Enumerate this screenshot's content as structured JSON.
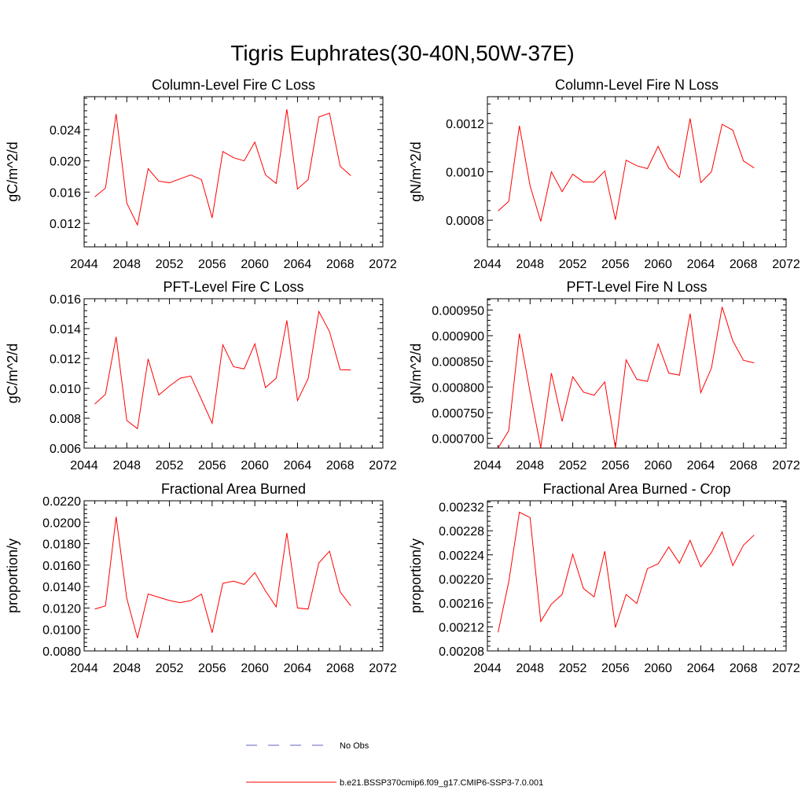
{
  "title": "Tigris Euphrates(30-40N,50W-37E)",
  "series_color": "#ff0000",
  "obs_color": "#6060c0",
  "legend": {
    "obs_label": "No Obs",
    "model_label": "b.e21.BSSP370cmip6.f09_g17.CMIP6-SSP3-7.0.001"
  },
  "chart_data": [
    {
      "type": "line",
      "title": "Column-Level Fire C Loss",
      "ylabel": "gC/m^2/d",
      "xlabel": "",
      "xlim": [
        2044,
        2072
      ],
      "ylim": [
        0.009,
        0.0282
      ],
      "xticks": [
        "2044",
        "2048",
        "2052",
        "2056",
        "2060",
        "2064",
        "2068",
        "2072"
      ],
      "yticks": [
        "0.012",
        "0.016",
        "0.020",
        "0.024"
      ],
      "ytick_values": [
        0.012,
        0.016,
        0.02,
        0.024
      ],
      "x": [
        2045,
        2046,
        2047,
        2048,
        2049,
        2050,
        2051,
        2052,
        2053,
        2054,
        2055,
        2056,
        2057,
        2058,
        2059,
        2060,
        2061,
        2062,
        2063,
        2064,
        2065,
        2066,
        2067,
        2068,
        2069
      ],
      "series": [
        {
          "name": "b.e21.BSSP370cmip6.f09_g17.CMIP6-SSP3-7.0.001",
          "values": [
            0.0154,
            0.0165,
            0.026,
            0.0146,
            0.0118,
            0.019,
            0.0174,
            0.0172,
            0.0177,
            0.0182,
            0.0176,
            0.0127,
            0.0212,
            0.0204,
            0.02,
            0.0224,
            0.0182,
            0.0171,
            0.0266,
            0.0164,
            0.0176,
            0.0256,
            0.0261,
            0.0193,
            0.0181
          ]
        }
      ]
    },
    {
      "type": "line",
      "title": "Column-Level Fire N Loss",
      "ylabel": "gN/m^2/d",
      "xlabel": "",
      "xlim": [
        2044,
        2072
      ],
      "ylim": [
        0.00069,
        0.00131
      ],
      "xticks": [
        "2044",
        "2048",
        "2052",
        "2056",
        "2060",
        "2064",
        "2068",
        "2072"
      ],
      "yticks": [
        "0.0008",
        "0.0010",
        "0.0012"
      ],
      "ytick_values": [
        0.0008,
        0.001,
        0.0012
      ],
      "x": [
        2045,
        2046,
        2047,
        2048,
        2049,
        2050,
        2051,
        2052,
        2053,
        2054,
        2055,
        2056,
        2057,
        2058,
        2059,
        2060,
        2061,
        2062,
        2063,
        2064,
        2065,
        2066,
        2067,
        2068,
        2069
      ],
      "series": [
        {
          "name": "b.e21.BSSP370cmip6.f09_g17.CMIP6-SSP3-7.0.001",
          "values": [
            0.000838,
            0.000878,
            0.00119,
            0.000942,
            0.000795,
            0.001,
            0.000918,
            0.00099,
            0.000958,
            0.000958,
            0.001003,
            0.000802,
            0.001048,
            0.001025,
            0.001013,
            0.001105,
            0.001015,
            0.000977,
            0.00122,
            0.000955,
            0.001,
            0.001196,
            0.001172,
            0.001045,
            0.001016
          ]
        }
      ]
    },
    {
      "type": "line",
      "title": "PFT-Level Fire C Loss",
      "ylabel": "gC/m^2/d",
      "xlabel": "",
      "xlim": [
        2044,
        2072
      ],
      "ylim": [
        0.006,
        0.016
      ],
      "xticks": [
        "2044",
        "2048",
        "2052",
        "2056",
        "2060",
        "2064",
        "2068",
        "2072"
      ],
      "yticks": [
        "0.006",
        "0.008",
        "0.010",
        "0.012",
        "0.014",
        "0.016"
      ],
      "ytick_values": [
        0.006,
        0.008,
        0.01,
        0.012,
        0.014,
        0.016
      ],
      "x": [
        2045,
        2046,
        2047,
        2048,
        2049,
        2050,
        2051,
        2052,
        2053,
        2054,
        2055,
        2056,
        2057,
        2058,
        2059,
        2060,
        2061,
        2062,
        2063,
        2064,
        2065,
        2066,
        2067,
        2068,
        2069
      ],
      "series": [
        {
          "name": "b.e21.BSSP370cmip6.f09_g17.CMIP6-SSP3-7.0.001",
          "values": [
            0.00895,
            0.0096,
            0.01345,
            0.00785,
            0.0073,
            0.01197,
            0.00955,
            0.01015,
            0.01068,
            0.01082,
            0.00925,
            0.00766,
            0.01292,
            0.01145,
            0.0113,
            0.01298,
            0.01005,
            0.01068,
            0.01455,
            0.00918,
            0.01066,
            0.01515,
            0.0138,
            0.01125,
            0.01123
          ]
        }
      ]
    },
    {
      "type": "line",
      "title": "PFT-Level Fire N Loss",
      "ylabel": "gN/m^2/d",
      "xlabel": "",
      "xlim": [
        2044,
        2072
      ],
      "ylim": [
        0.000681,
        0.000972
      ],
      "xticks": [
        "2044",
        "2048",
        "2052",
        "2056",
        "2060",
        "2064",
        "2068",
        "2072"
      ],
      "yticks": [
        "0.000700",
        "0.000750",
        "0.000800",
        "0.000850",
        "0.000900",
        "0.000950"
      ],
      "ytick_values": [
        0.0007,
        0.00075,
        0.0008,
        0.00085,
        0.0009,
        0.00095
      ],
      "x": [
        2045,
        2046,
        2047,
        2048,
        2049,
        2050,
        2051,
        2052,
        2053,
        2054,
        2055,
        2056,
        2057,
        2058,
        2059,
        2060,
        2061,
        2062,
        2063,
        2064,
        2065,
        2066,
        2067,
        2068,
        2069
      ],
      "series": [
        {
          "name": "b.e21.BSSP370cmip6.f09_g17.CMIP6-SSP3-7.0.001",
          "values": [
            0.000681,
            0.000715,
            0.000904,
            0.00079,
            0.000682,
            0.000827,
            0.000733,
            0.00082,
            0.00079,
            0.000784,
            0.00081,
            0.000681,
            0.000853,
            0.000815,
            0.000811,
            0.000884,
            0.000827,
            0.000823,
            0.000943,
            0.000789,
            0.000837,
            0.000956,
            0.00089,
            0.000852,
            0.000847
          ]
        }
      ]
    },
    {
      "type": "line",
      "title": "Fractional Area Burned",
      "ylabel": "proportion/y",
      "xlabel": "",
      "xlim": [
        2044,
        2072
      ],
      "ylim": [
        0.008,
        0.022
      ],
      "xticks": [
        "2044",
        "2048",
        "2052",
        "2056",
        "2060",
        "2064",
        "2068",
        "2072"
      ],
      "yticks": [
        "0.0080",
        "0.0100",
        "0.0120",
        "0.0140",
        "0.0160",
        "0.0180",
        "0.0200",
        "0.0220"
      ],
      "ytick_values": [
        0.008,
        0.01,
        0.012,
        0.014,
        0.016,
        0.018,
        0.02,
        0.022
      ],
      "x": [
        2045,
        2046,
        2047,
        2048,
        2049,
        2050,
        2051,
        2052,
        2053,
        2054,
        2055,
        2056,
        2057,
        2058,
        2059,
        2060,
        2061,
        2062,
        2063,
        2064,
        2065,
        2066,
        2067,
        2068,
        2069
      ],
      "series": [
        {
          "name": "b.e21.BSSP370cmip6.f09_g17.CMIP6-SSP3-7.0.001",
          "values": [
            0.0119,
            0.0122,
            0.0205,
            0.0129,
            0.0092,
            0.0133,
            0.013,
            0.0127,
            0.0125,
            0.0127,
            0.0133,
            0.0097,
            0.0143,
            0.0145,
            0.0142,
            0.0153,
            0.0136,
            0.0121,
            0.019,
            0.012,
            0.0119,
            0.0162,
            0.0173,
            0.0135,
            0.0122
          ]
        }
      ]
    },
    {
      "type": "line",
      "title": "Fractional Area Burned - Crop",
      "ylabel": "proportion/y",
      "xlabel": "",
      "xlim": [
        2044,
        2072
      ],
      "ylim": [
        0.00208,
        0.00233
      ],
      "xticks": [
        "2044",
        "2048",
        "2052",
        "2056",
        "2060",
        "2064",
        "2068",
        "2072"
      ],
      "yticks": [
        "0.00208",
        "0.00212",
        "0.00216",
        "0.00220",
        "0.00224",
        "0.00228",
        "0.00232"
      ],
      "ytick_values": [
        0.00208,
        0.00212,
        0.00216,
        0.0022,
        0.00224,
        0.00228,
        0.00232
      ],
      "x": [
        2045,
        2046,
        2047,
        2048,
        2049,
        2050,
        2051,
        2052,
        2053,
        2054,
        2055,
        2056,
        2057,
        2058,
        2059,
        2060,
        2061,
        2062,
        2063,
        2064,
        2065,
        2066,
        2067,
        2068,
        2069
      ],
      "series": [
        {
          "name": "b.e21.BSSP370cmip6.f09_g17.CMIP6-SSP3-7.0.001",
          "values": [
            0.002111,
            0.002195,
            0.002311,
            0.002302,
            0.002129,
            0.002158,
            0.002174,
            0.002241,
            0.002184,
            0.00217,
            0.002246,
            0.002119,
            0.002174,
            0.002159,
            0.002217,
            0.002225,
            0.002253,
            0.002226,
            0.002264,
            0.00222,
            0.002244,
            0.002278,
            0.002222,
            0.002256,
            0.002273
          ]
        }
      ]
    }
  ]
}
